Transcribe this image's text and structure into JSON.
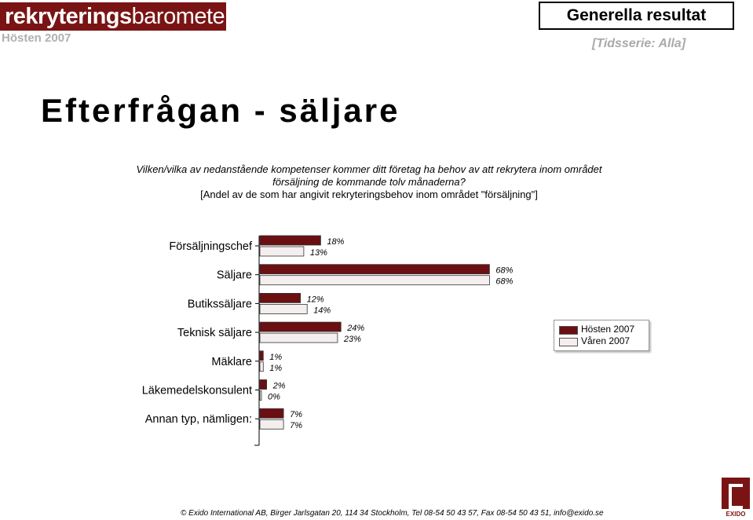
{
  "header": {
    "logo_bold": "rekryterings",
    "logo_light": "barometern",
    "season": "Hösten 2007",
    "section_title": "Generella resultat",
    "series_filter": "[Tidsserie: Alla]"
  },
  "title": "Efterfrågan - säljare",
  "question": {
    "line1": "Vilken/vilka av nedanstående kompetenser kommer ditt företag ha behov av att rekrytera inom området",
    "line2": "försäljning de kommande tolv månaderna?",
    "note": "[Andel av de som har angivit rekryteringsbehov inom området \"försäljning\"]"
  },
  "colors": {
    "series1": "#6b0f12",
    "series2": "#f4eeee",
    "logo_bg": "#7a1414"
  },
  "chart_data": {
    "type": "bar",
    "orientation": "horizontal",
    "categories": [
      "Försäljningschef",
      "Säljare",
      "Butikssäljare",
      "Teknisk säljare",
      "Mäklare",
      "Läkemedelskonsulent",
      "Annan typ, nämligen:"
    ],
    "series": [
      {
        "name": "Hösten 2007",
        "values": [
          18,
          68,
          12,
          24,
          1,
          2,
          7
        ],
        "labels": [
          "18%",
          "68%",
          "12%",
          "24%",
          "1%",
          "2%",
          "7%"
        ]
      },
      {
        "name": "Våren 2007",
        "values": [
          13,
          68,
          14,
          23,
          1,
          0,
          7
        ],
        "labels": [
          "13%",
          "68%",
          "14%",
          "23%",
          "1%",
          "0%",
          "7%"
        ]
      }
    ],
    "unit": "%",
    "legend": "right",
    "grid": false
  },
  "footer": {
    "contact": "Exido International AB, Birger Jarlsgatan 20, 114 34 Stockholm, Tel 08-54 50 43 57, Fax 08-54 50 43 51, info@exido.se",
    "copyright_symbol": "©",
    "brand": "EXIDO"
  }
}
